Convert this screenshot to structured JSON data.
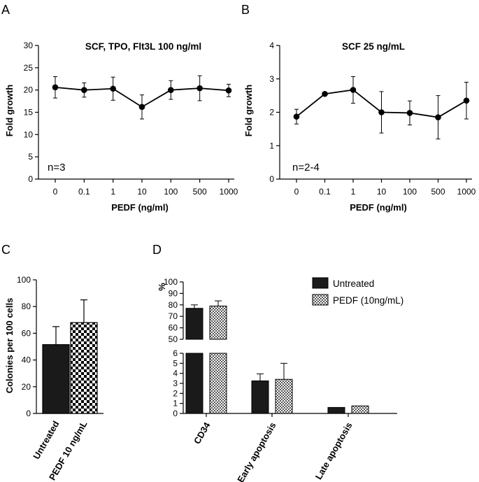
{
  "colors": {
    "ink": "#000000",
    "bar_dark": "#1a1a1a",
    "pattern_fill": "#ffffff"
  },
  "chart_data": [
    {
      "panel": "A",
      "type": "line",
      "title": "SCF, TPO, Flt3L 100 ng/ml",
      "xlabel": "PEDF (ng/ml)",
      "ylabel": "Fold growth",
      "categories": [
        "0",
        "0.1",
        "1",
        "10",
        "100",
        "500",
        "1000"
      ],
      "values": [
        20.6,
        20.0,
        20.3,
        16.2,
        20.0,
        20.4,
        19.9
      ],
      "errors": [
        2.4,
        1.6,
        2.6,
        2.7,
        2.1,
        2.8,
        1.4
      ],
      "ylim": [
        0,
        30
      ],
      "yticks": [
        0,
        5,
        10,
        15,
        20,
        25,
        30
      ],
      "annotation": "n=3",
      "grid": false
    },
    {
      "panel": "B",
      "type": "line",
      "title": "SCF 25 ng/mL",
      "xlabel": "PEDF (ng/ml)",
      "ylabel": "Fold growth",
      "categories": [
        "0",
        "0.1",
        "1",
        "10",
        "100",
        "500",
        "1000"
      ],
      "values": [
        1.87,
        2.55,
        2.67,
        2.0,
        1.98,
        1.85,
        2.35
      ],
      "errors": [
        0.22,
        0.0,
        0.4,
        0.62,
        0.36,
        0.65,
        0.55
      ],
      "ylim": [
        0,
        4
      ],
      "yticks": [
        0,
        1,
        2,
        3,
        4
      ],
      "annotation": "n=2-4",
      "grid": false
    },
    {
      "panel": "C",
      "type": "bar",
      "ylabel": "Colonies per 100 cells",
      "categories": [
        "Untreated",
        "PEDF 10 ng/mL"
      ],
      "values": [
        51.5,
        68.0
      ],
      "errors": [
        13.5,
        17.0
      ],
      "ylim": [
        0,
        100
      ],
      "yticks": [
        0,
        20,
        40,
        60,
        80,
        100
      ],
      "fills": [
        "solid",
        "checkerboard"
      ],
      "grid": false
    },
    {
      "panel": "D",
      "type": "bar",
      "ylabel": "%",
      "categories": [
        "CD34",
        "Early apoptosis",
        "Late apoptosis"
      ],
      "series": [
        {
          "name": "Untreated",
          "values": [
            77.0,
            3.25,
            0.6
          ],
          "errors": [
            3.0,
            0.7,
            0.0
          ]
        },
        {
          "name": "PEDF (10ng/mL)",
          "values": [
            79.0,
            3.4,
            0.75
          ],
          "errors": [
            4.5,
            1.6,
            0.0
          ]
        }
      ],
      "broken_axis": {
        "lower": [
          0,
          6
        ],
        "upper": [
          50,
          100
        ]
      },
      "yticks_lower": [
        0,
        1,
        2,
        3,
        4,
        5,
        6
      ],
      "yticks_upper": [
        50,
        60,
        70,
        80,
        90,
        100
      ],
      "legend_position": "top-right",
      "grid": false
    }
  ]
}
